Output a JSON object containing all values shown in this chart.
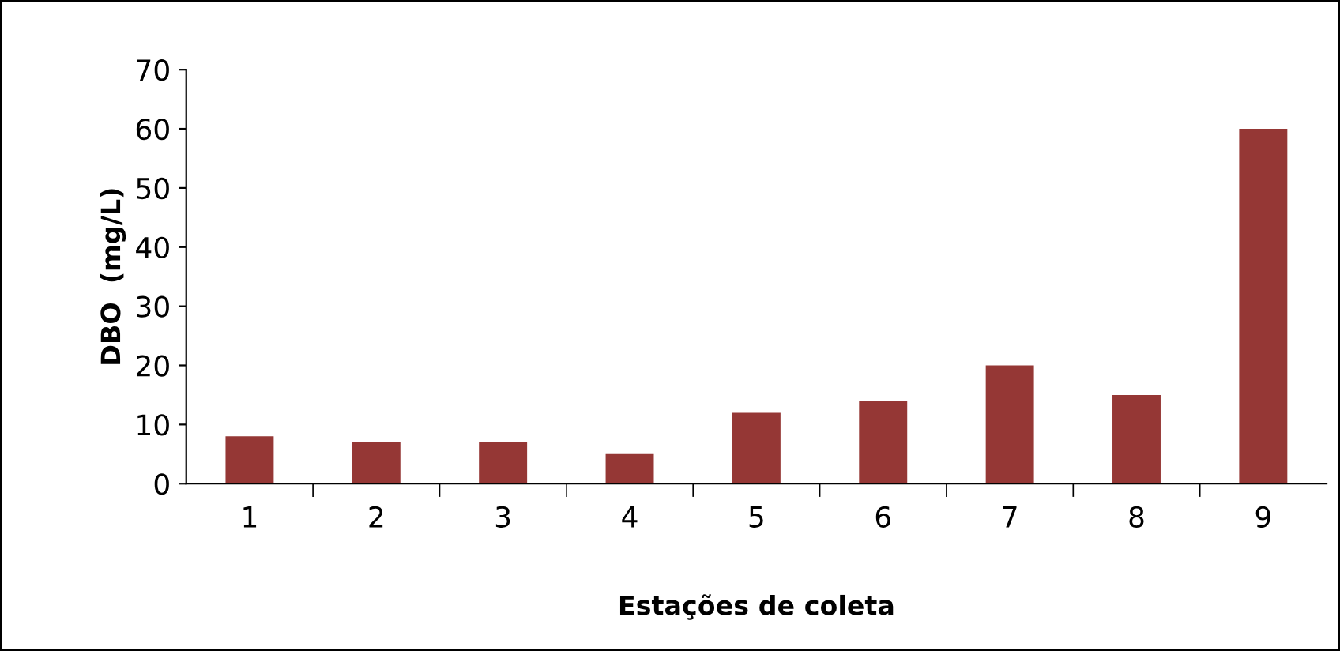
{
  "chart_data": {
    "type": "bar",
    "xlabel": "Estações de coleta",
    "ylabel": "DBO  (mg/L)",
    "categories": [
      "1",
      "2",
      "3",
      "4",
      "5",
      "6",
      "7",
      "8",
      "9"
    ],
    "values": [
      8,
      7,
      7,
      5,
      12,
      14,
      20,
      15,
      60
    ],
    "color": "#953735",
    "ylim": [
      0,
      70
    ],
    "yticks": [
      0,
      10,
      20,
      30,
      40,
      50,
      60,
      70
    ],
    "grid": false,
    "legend": false
  }
}
